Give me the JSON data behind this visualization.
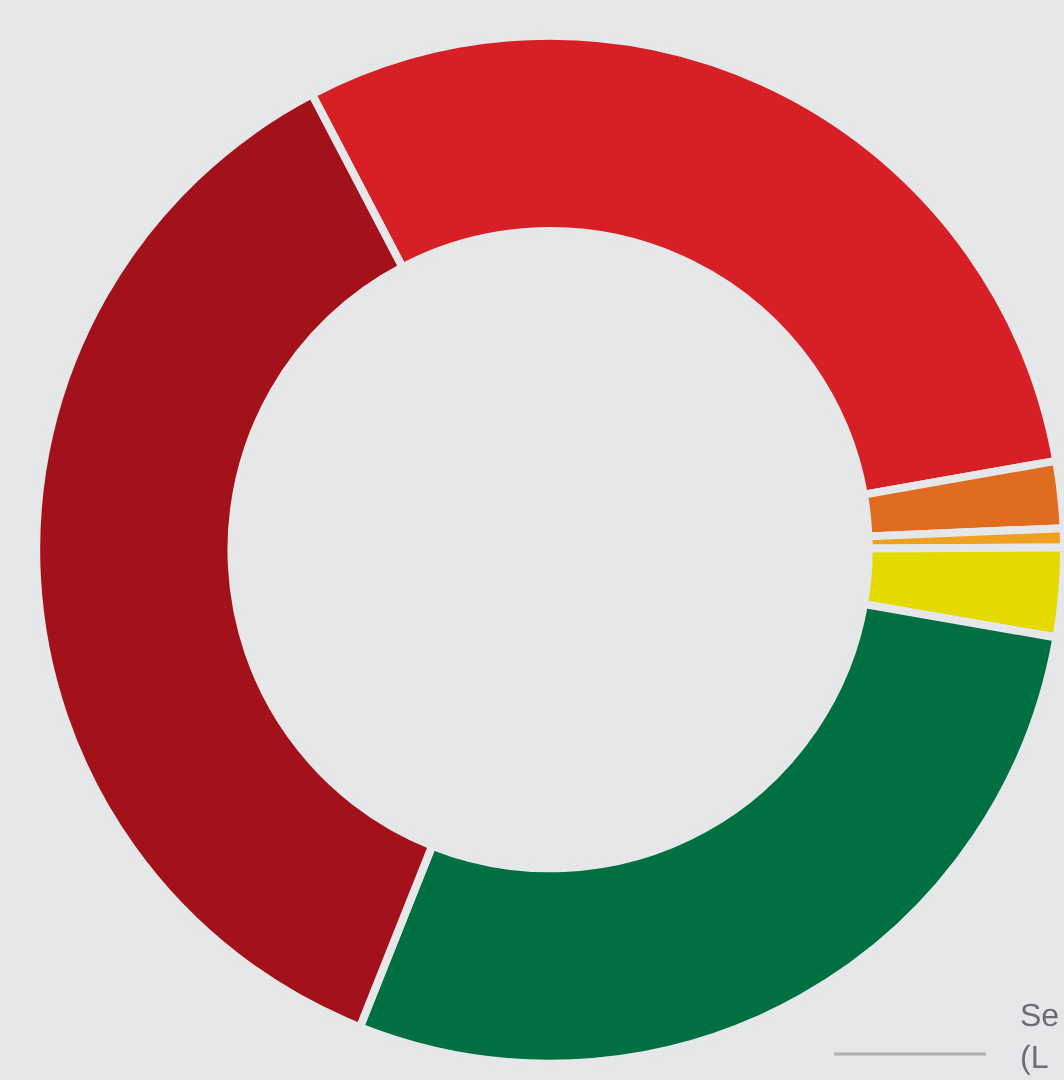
{
  "chart_data": {
    "type": "donut",
    "categories": [
      null,
      null,
      null,
      null,
      null,
      null
    ],
    "values": [
      29.9,
      2.1,
      0.6,
      2.8,
      28.3,
      36.3
    ],
    "colors": [
      "#d71f26",
      "#e06c1f",
      "#f0a020",
      "#e4da00",
      "#006f41",
      "#a3111a"
    ],
    "legend": false,
    "annotations": [
      "Se\n(L"
    ]
  }
}
